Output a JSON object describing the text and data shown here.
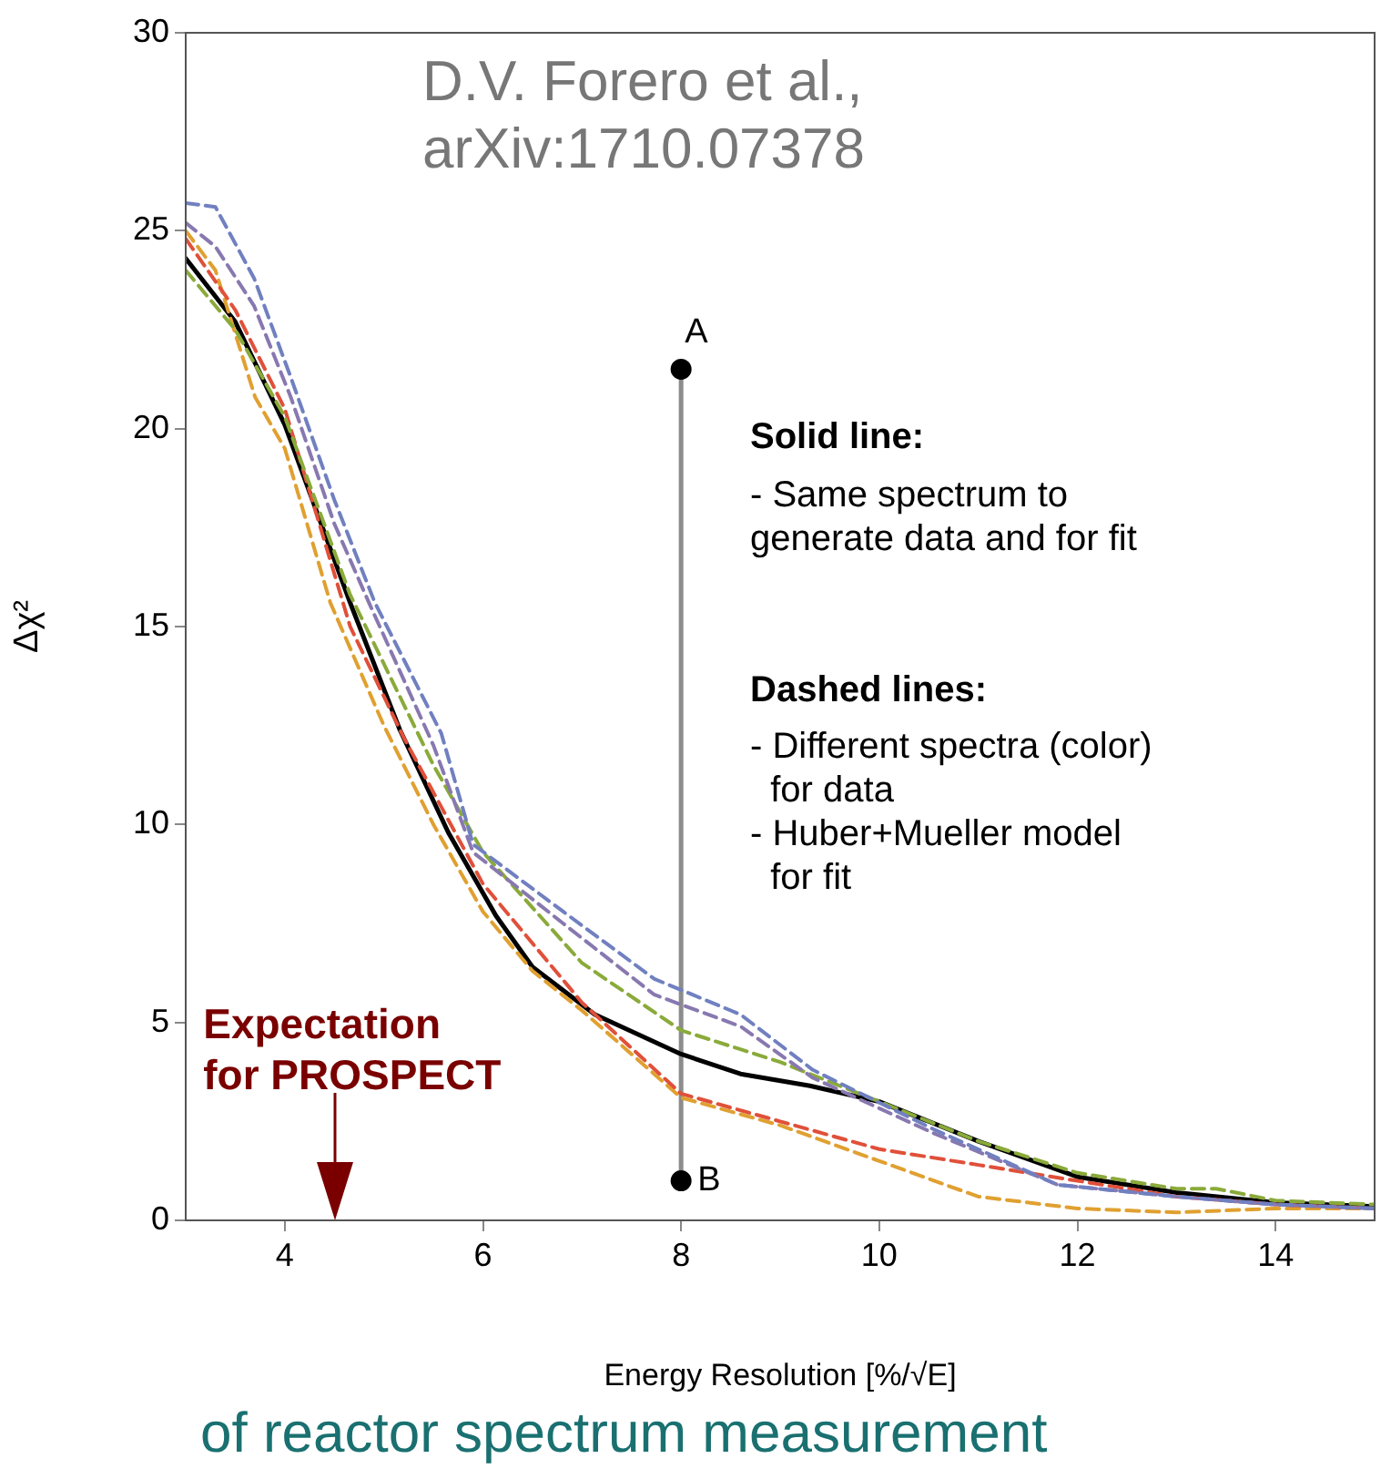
{
  "chart_data": {
    "type": "line",
    "xlabel": "Energy Resolution [%/√E]",
    "ylabel": "Δχ²",
    "xlim": [
      3,
      15
    ],
    "xticks": [
      4,
      6,
      8,
      10,
      12,
      14
    ],
    "ref_lines": [
      {
        "axis": "x",
        "value": 4.5,
        "label": "Expectation\nfor PROSPECT",
        "color": "#7a0000"
      }
    ],
    "ylim": [
      0,
      30
    ],
    "yticks": [
      0,
      5,
      10,
      15,
      20,
      25,
      30
    ],
    "grid": false,
    "legend": false,
    "marker": "none",
    "line_style": "solid",
    "series": [
      {
        "color": "#7080c0",
        "line_style": "dashed",
        "x": [
          3,
          3.3,
          3.69,
          4.06,
          4.5,
          4.91,
          5.58,
          5.9,
          6.81,
          7.73,
          8.6,
          9.33,
          10.55,
          11.8,
          13,
          14,
          15
        ],
        "values": [
          25.7,
          25.6,
          23.8,
          21.3,
          18.2,
          15.6,
          12.3,
          9.5,
          7.8,
          6.1,
          5.2,
          3.8,
          2.3,
          0.9,
          0.6,
          0.4,
          0.3
        ]
      },
      {
        "color": "#8878b0",
        "line_style": "dashed",
        "x": [
          3,
          3.3,
          3.69,
          4.06,
          4.5,
          4.85,
          5.5,
          5.9,
          6.81,
          7.73,
          8.6,
          9.33,
          10.55,
          11.8,
          13,
          14,
          15
        ],
        "values": [
          25.2,
          24.6,
          23.1,
          20.8,
          17.6,
          15.6,
          12.0,
          9.3,
          7.5,
          5.7,
          4.9,
          3.6,
          2.2,
          0.9,
          0.6,
          0.4,
          0.3
        ]
      },
      {
        "color": "#8aaa3a",
        "line_style": "dashed",
        "x": [
          3,
          3.5,
          4,
          4.66,
          5.5,
          6,
          7,
          8,
          9,
          10,
          11,
          12,
          13,
          13.4,
          14,
          15
        ],
        "values": [
          24.0,
          22.5,
          20.3,
          15.8,
          11.5,
          9.3,
          6.5,
          4.8,
          4.0,
          3.0,
          2.0,
          1.2,
          0.8,
          0.8,
          0.5,
          0.4
        ]
      },
      {
        "color": "#e0503a",
        "line_style": "dashed",
        "x": [
          3,
          3.5,
          4,
          4.66,
          5.2,
          6,
          7,
          8,
          9,
          10,
          11,
          12,
          13,
          14,
          15
        ],
        "values": [
          24.8,
          23.0,
          20.5,
          15.0,
          12.2,
          8.5,
          5.5,
          3.2,
          2.5,
          1.8,
          1.4,
          1.0,
          0.6,
          0.4,
          0.3
        ]
      },
      {
        "color": "#e0a030",
        "line_style": "dashed",
        "x": [
          3,
          3.3,
          3.7,
          4,
          4.46,
          5,
          5.5,
          6,
          6.5,
          7,
          8,
          9,
          10,
          11,
          12,
          13,
          14,
          15
        ],
        "values": [
          25.0,
          24.0,
          20.8,
          19.5,
          15.6,
          12.5,
          10.0,
          7.8,
          6.3,
          5.3,
          3.1,
          2.4,
          1.5,
          0.6,
          0.3,
          0.2,
          0.3,
          0.3
        ]
      },
      {
        "color": "#000000",
        "x": [
          3,
          3.5,
          4,
          4.66,
          5.16,
          5.65,
          6.13,
          6.5,
          7.13,
          8,
          8.6,
          9.3,
          10,
          11,
          12,
          13,
          14,
          15
        ],
        "values": [
          24.3,
          22.7,
          20.1,
          15.6,
          12.4,
          9.8,
          7.7,
          6.4,
          5.2,
          4.2,
          3.7,
          3.4,
          3.0,
          2.0,
          1.1,
          0.7,
          0.45,
          0.35
        ]
      },
      {
        "color": "#8c8c8c",
        "marker": "circle",
        "x": [
          8,
          8
        ],
        "values": [
          1,
          21.5
        ]
      }
    ],
    "annotations": [
      {
        "text": "A",
        "x": 8,
        "y": 21.5
      },
      {
        "text": "B",
        "x": 8,
        "y": 1
      },
      "D.V. Forero et al.,\narXiv:1710.07378",
      "Solid line:",
      "- Same spectrum to\ngenerate data and for fit",
      "Dashed lines:",
      "- Different spectra (color)\n  for data\n- Huber+Mueller model\n  for fit",
      "of reactor spectrum measurement"
    ]
  }
}
